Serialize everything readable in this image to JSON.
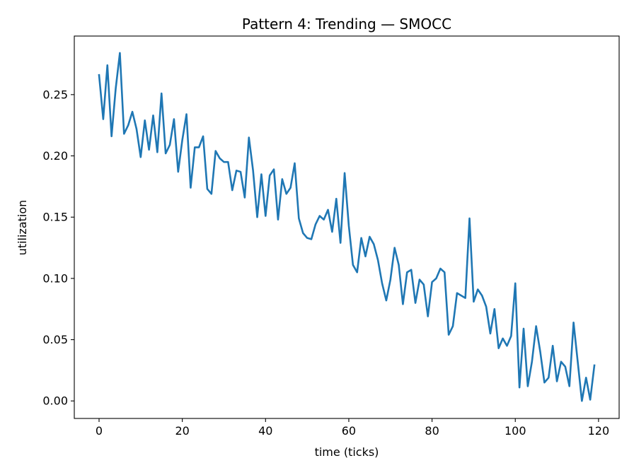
{
  "chart_data": {
    "type": "line",
    "title": "Pattern 4: Trending — SMOCC",
    "xlabel": "time (ticks)",
    "ylabel": "utilization",
    "xlim": [
      -5.95,
      124.95
    ],
    "ylim": [
      -0.0143,
      0.2978
    ],
    "xticks": [
      0,
      20,
      40,
      60,
      80,
      100,
      120
    ],
    "xtick_labels": [
      "0",
      "20",
      "40",
      "60",
      "80",
      "100",
      "120"
    ],
    "yticks": [
      0.0,
      0.05,
      0.1,
      0.15,
      0.2,
      0.25
    ],
    "ytick_labels": [
      "0.00",
      "0.05",
      "0.10",
      "0.15",
      "0.20",
      "0.25"
    ],
    "grid": false,
    "series": [
      {
        "name": "utilization",
        "color": "#1f77b4",
        "x": [
          0,
          1,
          2,
          3,
          4,
          5,
          6,
          7,
          8,
          9,
          10,
          11,
          12,
          13,
          14,
          15,
          16,
          17,
          18,
          19,
          20,
          21,
          22,
          23,
          24,
          25,
          26,
          27,
          28,
          29,
          30,
          31,
          32,
          33,
          34,
          35,
          36,
          37,
          38,
          39,
          40,
          41,
          42,
          43,
          44,
          45,
          46,
          47,
          48,
          49,
          50,
          51,
          52,
          53,
          54,
          55,
          56,
          57,
          58,
          59,
          60,
          61,
          62,
          63,
          64,
          65,
          66,
          67,
          68,
          69,
          70,
          71,
          72,
          73,
          74,
          75,
          76,
          77,
          78,
          79,
          80,
          81,
          82,
          83,
          84,
          85,
          86,
          87,
          88,
          89,
          90,
          91,
          92,
          93,
          94,
          95,
          96,
          97,
          98,
          99,
          100,
          101,
          102,
          103,
          104,
          105,
          106,
          107,
          108,
          109,
          110,
          111,
          112,
          113,
          114,
          115,
          116,
          117,
          118,
          119
        ],
        "values": [
          0.266,
          0.23,
          0.274,
          0.216,
          0.255,
          0.284,
          0.218,
          0.225,
          0.236,
          0.222,
          0.199,
          0.229,
          0.205,
          0.233,
          0.203,
          0.251,
          0.202,
          0.209,
          0.23,
          0.187,
          0.213,
          0.234,
          0.174,
          0.207,
          0.207,
          0.216,
          0.173,
          0.169,
          0.204,
          0.198,
          0.195,
          0.195,
          0.172,
          0.188,
          0.187,
          0.166,
          0.215,
          0.188,
          0.15,
          0.185,
          0.151,
          0.184,
          0.189,
          0.148,
          0.181,
          0.169,
          0.174,
          0.194,
          0.149,
          0.137,
          0.133,
          0.132,
          0.144,
          0.151,
          0.148,
          0.156,
          0.138,
          0.165,
          0.129,
          0.186,
          0.143,
          0.111,
          0.105,
          0.133,
          0.118,
          0.134,
          0.128,
          0.115,
          0.096,
          0.082,
          0.099,
          0.125,
          0.111,
          0.079,
          0.105,
          0.107,
          0.08,
          0.099,
          0.095,
          0.069,
          0.097,
          0.1,
          0.108,
          0.105,
          0.054,
          0.061,
          0.088,
          0.086,
          0.084,
          0.149,
          0.081,
          0.091,
          0.086,
          0.077,
          0.055,
          0.075,
          0.043,
          0.051,
          0.045,
          0.053,
          0.096,
          0.011,
          0.059,
          0.012,
          0.032,
          0.061,
          0.04,
          0.015,
          0.019,
          0.045,
          0.016,
          0.032,
          0.028,
          0.012,
          0.064,
          0.032,
          0.0,
          0.019,
          0.001,
          0.029
        ]
      }
    ]
  }
}
